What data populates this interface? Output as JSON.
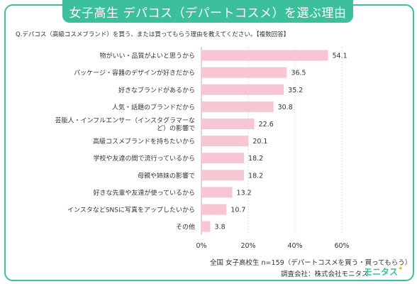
{
  "title": "女子高生 デパコス（デパートコスメ）を選ぶ理由",
  "question": "Q.デパコス（高級コスメブランド）を買う、または買ってもらう理由を教えてください。【複数回答】",
  "footer": {
    "sample": "全国  女子高校生 n=159（デパートコスメを買う・買ってもらう）",
    "survey": "調査会社：株式会社モニタス",
    "logo": "モニタス",
    "logo_star": "✦"
  },
  "colors": {
    "accent": "#3cbf9b",
    "bar": "#f7c6d2",
    "grid": "#dcdcdc"
  },
  "chart_data": {
    "type": "bar",
    "orientation": "horizontal",
    "categories": [
      [
        "物がいい・品質がよいと思うから"
      ],
      [
        "パッケージ・容器のデザインが好きだから"
      ],
      [
        "好きなブランドがあるから"
      ],
      [
        "人気・話題のブランドだから"
      ],
      [
        "芸能人・インフルエンサー（インスタグラマーな",
        "ど）の影響で"
      ],
      [
        "高級コスメブランドを持ちたいから"
      ],
      [
        "学校や友達の間で流行っているから"
      ],
      [
        "母親や姉妹の影響で"
      ],
      [
        "好きな先輩や友達が使っているから"
      ],
      [
        "インスタなどSNSに写真をアップしたいから"
      ],
      [
        "その他"
      ]
    ],
    "values": [
      54.1,
      36.5,
      35.2,
      30.8,
      22.6,
      20.1,
      18.2,
      18.2,
      13.2,
      10.7,
      3.8
    ],
    "value_labels": [
      "54.1",
      "36.5",
      "35.2",
      "30.8",
      "22.6",
      "20.1",
      "18.2",
      "18.2",
      "13.2",
      "10.7",
      "3.8"
    ],
    "xlim": [
      0,
      60
    ],
    "xticks": [
      0,
      20,
      40,
      60
    ],
    "xtick_labels": [
      "0%",
      "20%",
      "40%",
      "60%"
    ],
    "grid": true
  }
}
